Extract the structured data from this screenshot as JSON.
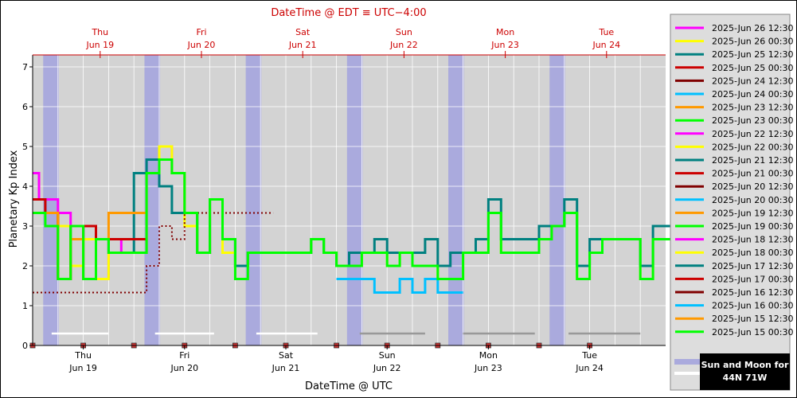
{
  "chart_data": {
    "type": "line",
    "title": "DateTime @ EDT ≡ UTC−4:00",
    "xlabel": "DateTime @ UTC",
    "ylabel": "Planetary Kp Index",
    "ylim": [
      0,
      7.3
    ],
    "yticks": [
      "0",
      "1",
      "2",
      "3",
      "4",
      "5",
      "6",
      "7"
    ],
    "xlim_hours": [
      0,
      150
    ],
    "days_bottom": [
      {
        "dow": "Thu",
        "date": "Jun 19",
        "hour": 12
      },
      {
        "dow": "Fri",
        "date": "Jun 20",
        "hour": 36
      },
      {
        "dow": "Sat",
        "date": "Jun 21",
        "hour": 60
      },
      {
        "dow": "Sun",
        "date": "Jun 22",
        "hour": 84
      },
      {
        "dow": "Mon",
        "date": "Jun 23",
        "hour": 108
      },
      {
        "dow": "Tue",
        "date": "Jun 24",
        "hour": 132
      }
    ],
    "days_top": [
      {
        "dow": "Thu",
        "date": "Jun 19",
        "hour": 16
      },
      {
        "dow": "Fri",
        "date": "Jun 20",
        "hour": 40
      },
      {
        "dow": "Sat",
        "date": "Jun 21",
        "hour": 64
      },
      {
        "dow": "Sun",
        "date": "Jun 22",
        "hour": 88
      },
      {
        "dow": "Mon",
        "date": "Jun 23",
        "hour": 112
      },
      {
        "dow": "Tue",
        "date": "Jun 24",
        "hour": 136
      }
    ],
    "night_bands_hours": [
      [
        2.5,
        6.2
      ],
      [
        26.5,
        30.2
      ],
      [
        50.5,
        54.2
      ],
      [
        74.5,
        78.2
      ],
      [
        98.5,
        102.2
      ],
      [
        122.5,
        126.2
      ]
    ],
    "moon_bars": [
      [
        4.5,
        18
      ],
      [
        29,
        43
      ],
      [
        53,
        67.5
      ],
      [
        77.5,
        93
      ],
      [
        102,
        119
      ],
      [
        127,
        144
      ]
    ],
    "series": [
      {
        "name": "2025-Jun 26 12:30",
        "color": "#ff00ff",
        "style": "solid",
        "x": [
          0,
          1.5,
          6,
          9,
          12,
          15,
          18,
          21,
          24,
          27,
          30,
          33,
          36,
          39,
          42,
          45,
          48,
          51,
          54
        ],
        "values": [
          4.33,
          3.67,
          3.33,
          2.0,
          3.0,
          1.67,
          2.67,
          2.33,
          2.33,
          4.33,
          5.0,
          4.33,
          3.33,
          2.33,
          3.67,
          2.67,
          2.0,
          2.33,
          2.33
        ]
      },
      {
        "name": "2025-Jun 26 00:30",
        "color": "#ffff00",
        "style": "solid",
        "x": [
          0,
          3,
          6,
          9,
          12,
          15,
          18,
          21,
          24,
          27,
          30,
          33,
          36,
          39,
          42,
          45,
          48,
          51,
          54,
          57,
          60,
          63,
          66,
          69,
          72,
          75,
          78,
          81,
          84,
          87,
          90,
          93,
          96,
          99,
          102,
          105,
          108,
          111,
          114,
          117,
          120,
          123,
          126,
          129,
          132,
          135,
          138,
          141,
          144,
          147,
          150
        ],
        "values": [
          3.33,
          3.33,
          3.0,
          2.0,
          2.67,
          1.67,
          2.33,
          2.33,
          2.33,
          4.33,
          5.0,
          4.33,
          3.0,
          2.33,
          3.67,
          2.33,
          2.0,
          2.33,
          2.33,
          2.33,
          2.33,
          2.33,
          2.67,
          2.33,
          2.0,
          2.0,
          2.33,
          2.33,
          2.0,
          2.33,
          2.0,
          2.0,
          1.67,
          1.67,
          2.33,
          2.33,
          3.33,
          2.33,
          2.33,
          2.33,
          2.67,
          3.0,
          3.33,
          1.67,
          2.33,
          2.67,
          2.67,
          2.67,
          1.67,
          2.67,
          2.67
        ]
      },
      {
        "name": "2025-Jun 25 12:30",
        "color": "#008080",
        "style": "solid",
        "x": [
          0,
          3,
          6,
          9,
          12,
          15,
          18,
          21,
          24,
          27,
          30,
          33,
          36,
          39,
          42,
          45,
          48,
          51,
          54,
          57,
          60,
          63,
          66,
          69,
          72,
          75,
          78,
          81,
          84,
          87,
          90,
          93,
          96,
          99,
          102,
          105,
          108,
          111,
          114,
          117,
          120,
          123,
          126,
          129,
          132,
          135,
          138,
          141,
          144,
          147,
          150
        ],
        "values": [
          3.67,
          3.33,
          1.67,
          3.0,
          1.67,
          2.67,
          2.33,
          2.33,
          4.33,
          4.67,
          4.0,
          3.33,
          3.33,
          2.33,
          3.67,
          2.67,
          2.0,
          2.33,
          2.33,
          2.33,
          2.33,
          2.33,
          2.67,
          2.33,
          2.0,
          2.33,
          2.33,
          2.67,
          2.33,
          2.33,
          2.33,
          2.67,
          2.0,
          2.33,
          2.33,
          2.67,
          3.67,
          2.67,
          2.67,
          2.67,
          3.0,
          3.0,
          3.67,
          2.0,
          2.67,
          2.67,
          2.67,
          2.67,
          2.0,
          3.0,
          3.0
        ]
      },
      {
        "name": "2025-Jun 25 00:30",
        "color": "#cc0000",
        "style": "solid",
        "x": [
          0,
          3,
          6,
          9,
          12,
          15,
          18,
          21,
          24
        ],
        "values": [
          3.67,
          3.33,
          1.67,
          2.67,
          3.0,
          2.67,
          2.67,
          2.67,
          2.67
        ]
      },
      {
        "name": "2025-Jun 24 12:30",
        "color": "#800000",
        "style": "dotted",
        "x": [
          0,
          3,
          6,
          9,
          12,
          15,
          18,
          21,
          24,
          27,
          30,
          33,
          36,
          39,
          42,
          45,
          48,
          51,
          54
        ],
        "values": [
          1.33,
          1.33,
          1.33,
          1.33,
          1.33,
          1.33,
          1.33,
          1.33,
          1.33,
          2.0,
          3.0,
          2.67,
          3.33,
          3.33,
          3.33,
          3.33,
          3.33,
          3.33,
          3.33
        ]
      },
      {
        "name": "2025-Jun 24 00:30",
        "color": "#00c0ff",
        "style": "solid",
        "x": [
          72,
          75,
          78,
          81,
          84,
          87,
          90,
          93,
          96,
          99
        ],
        "values": [
          1.67,
          1.67,
          1.67,
          1.33,
          1.33,
          1.67,
          1.33,
          1.67,
          1.33,
          1.33
        ]
      },
      {
        "name": "2025-Jun 23 12:30",
        "color": "#ff9900",
        "style": "solid",
        "x": [
          0,
          3,
          6,
          9,
          12,
          15,
          18,
          21,
          24
        ],
        "values": [
          3.33,
          3.33,
          1.67,
          2.67,
          1.67,
          2.67,
          3.33,
          3.33,
          3.33
        ]
      },
      {
        "name": "2025-Jun 23 00:30",
        "color": "#00ff00",
        "style": "solid",
        "x": [
          0,
          3,
          6,
          9,
          12,
          15,
          18,
          21,
          24,
          27,
          30,
          33,
          36,
          39,
          42,
          45,
          48,
          51,
          54,
          57,
          60,
          63,
          66,
          69,
          72,
          75,
          78,
          81,
          84,
          87,
          90,
          93,
          96,
          99,
          102,
          105,
          108,
          111,
          114,
          117,
          120,
          123,
          126,
          129,
          132,
          135,
          138,
          141,
          144,
          147,
          150
        ],
        "values": [
          3.33,
          3.0,
          1.67,
          3.0,
          1.67,
          2.67,
          2.33,
          2.33,
          2.33,
          4.33,
          4.67,
          4.33,
          3.33,
          2.33,
          3.67,
          2.67,
          1.67,
          2.33,
          2.33,
          2.33,
          2.33,
          2.33,
          2.67,
          2.33,
          2.0,
          2.0,
          2.33,
          2.33,
          2.0,
          2.33,
          2.0,
          2.0,
          1.67,
          1.67,
          2.33,
          2.33,
          3.33,
          2.33,
          2.33,
          2.33,
          2.67,
          3.0,
          3.33,
          1.67,
          2.33,
          2.67,
          2.67,
          2.67,
          1.67,
          2.67,
          2.67
        ]
      }
    ],
    "legend": [
      {
        "name": "2025-Jun 26 12:30",
        "color": "#ff00ff"
      },
      {
        "name": "2025-Jun 26 00:30",
        "color": "#ffff00"
      },
      {
        "name": "2025-Jun 25 12:30",
        "color": "#008080"
      },
      {
        "name": "2025-Jun 25 00:30",
        "color": "#cc0000"
      },
      {
        "name": "2025-Jun 24 12:30",
        "color": "#800000"
      },
      {
        "name": "2025-Jun 24 00:30",
        "color": "#00c0ff"
      },
      {
        "name": "2025-Jun 23 12:30",
        "color": "#ff9900"
      },
      {
        "name": "2025-Jun 23 00:30",
        "color": "#00ff00"
      },
      {
        "name": "2025-Jun 22 12:30",
        "color": "#ff00ff"
      },
      {
        "name": "2025-Jun 22 00:30",
        "color": "#ffff00"
      },
      {
        "name": "2025-Jun 21 12:30",
        "color": "#008080"
      },
      {
        "name": "2025-Jun 21 00:30",
        "color": "#cc0000"
      },
      {
        "name": "2025-Jun 20 12:30",
        "color": "#800000"
      },
      {
        "name": "2025-Jun 20 00:30",
        "color": "#00c0ff"
      },
      {
        "name": "2025-Jun 19 12:30",
        "color": "#ff9900"
      },
      {
        "name": "2025-Jun 19 00:30",
        "color": "#00ff00"
      },
      {
        "name": "2025-Jun 18 12:30",
        "color": "#ff00ff"
      },
      {
        "name": "2025-Jun 18 00:30",
        "color": "#ffff00"
      },
      {
        "name": "2025-Jun 17 12:30",
        "color": "#008080"
      },
      {
        "name": "2025-Jun 17 00:30",
        "color": "#cc0000"
      },
      {
        "name": "2025-Jun 16 12:30",
        "color": "#800000"
      },
      {
        "name": "2025-Jun 16 00:30",
        "color": "#00c0ff"
      },
      {
        "name": "2025-Jun 15 12:30",
        "color": "#ff9900"
      },
      {
        "name": "2025-Jun 15 00:30",
        "color": "#00ff00"
      }
    ],
    "legend_placement": "right",
    "grid": true
  },
  "sun_moon_box": {
    "line1": "Sun and Moon for",
    "line2": "44N 71W"
  },
  "colors": {
    "plot_bg": "#d3d3d3",
    "night_band": "#aaaadd",
    "top_axis": "#cc0000"
  }
}
